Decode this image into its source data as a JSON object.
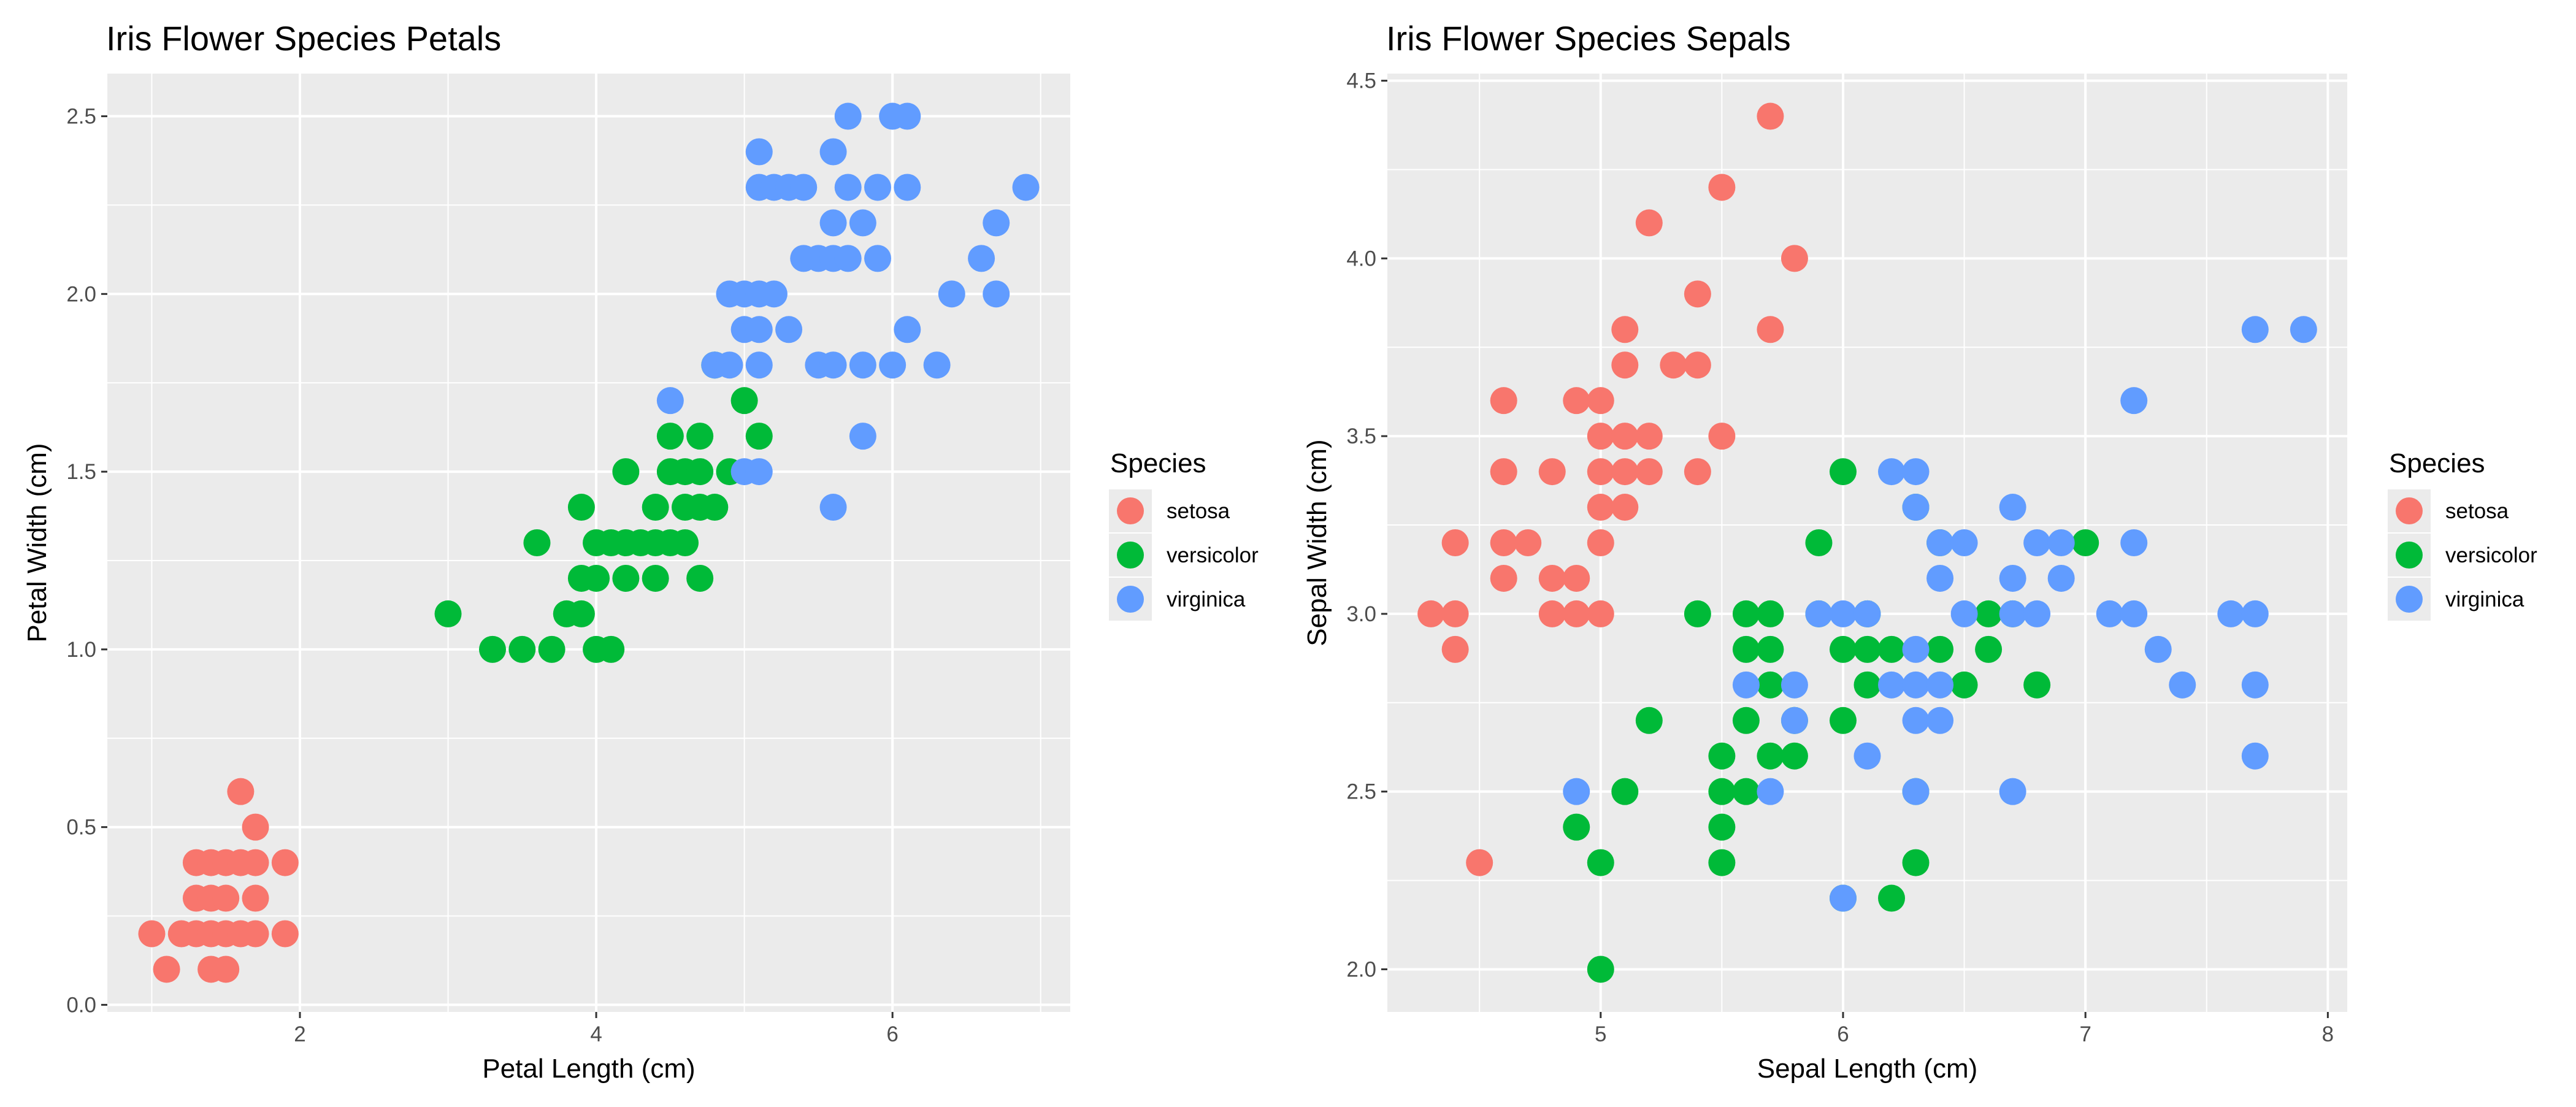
{
  "chart_data": [
    {
      "type": "scatter",
      "title": "Iris Flower Species Petals",
      "xlabel": "Petal Length (cm)",
      "ylabel": "Petal Width (cm)",
      "xlim": [
        0.7,
        7.2
      ],
      "ylim": [
        -0.02,
        2.62
      ],
      "xticks": [
        {
          "v": 2,
          "label": "2"
        },
        {
          "v": 4,
          "label": "4"
        },
        {
          "v": 6,
          "label": "6"
        }
      ],
      "yticks": [
        {
          "v": 0.0,
          "label": "0.0"
        },
        {
          "v": 0.5,
          "label": "0.5"
        },
        {
          "v": 1.0,
          "label": "1.0"
        },
        {
          "v": 1.5,
          "label": "1.5"
        },
        {
          "v": 2.0,
          "label": "2.0"
        },
        {
          "v": 2.5,
          "label": "2.5"
        }
      ],
      "xminor": [
        1,
        3,
        5,
        7
      ],
      "yminor": [
        0.25,
        0.75,
        1.25,
        1.75,
        2.25
      ],
      "grid": true,
      "legend": {
        "title": "Species",
        "placement": "right"
      },
      "series": [
        {
          "name": "setosa",
          "color": "#F8766D",
          "points": [
            [
              1.0,
              0.2
            ],
            [
              1.1,
              0.1
            ],
            [
              1.2,
              0.2
            ],
            [
              1.3,
              0.2
            ],
            [
              1.3,
              0.3
            ],
            [
              1.3,
              0.4
            ],
            [
              1.4,
              0.1
            ],
            [
              1.4,
              0.2
            ],
            [
              1.4,
              0.3
            ],
            [
              1.4,
              0.4
            ],
            [
              1.5,
              0.1
            ],
            [
              1.5,
              0.2
            ],
            [
              1.5,
              0.3
            ],
            [
              1.5,
              0.4
            ],
            [
              1.6,
              0.2
            ],
            [
              1.6,
              0.4
            ],
            [
              1.6,
              0.6
            ],
            [
              1.7,
              0.2
            ],
            [
              1.7,
              0.3
            ],
            [
              1.7,
              0.4
            ],
            [
              1.7,
              0.5
            ],
            [
              1.9,
              0.2
            ],
            [
              1.9,
              0.4
            ]
          ]
        },
        {
          "name": "versicolor",
          "color": "#00BA38",
          "points": [
            [
              3.0,
              1.1
            ],
            [
              3.3,
              1.0
            ],
            [
              3.5,
              1.0
            ],
            [
              3.6,
              1.3
            ],
            [
              3.7,
              1.0
            ],
            [
              3.8,
              1.1
            ],
            [
              3.9,
              1.1
            ],
            [
              3.9,
              1.2
            ],
            [
              3.9,
              1.4
            ],
            [
              4.0,
              1.0
            ],
            [
              4.0,
              1.2
            ],
            [
              4.0,
              1.3
            ],
            [
              4.1,
              1.0
            ],
            [
              4.1,
              1.3
            ],
            [
              4.2,
              1.2
            ],
            [
              4.2,
              1.3
            ],
            [
              4.2,
              1.5
            ],
            [
              4.3,
              1.3
            ],
            [
              4.4,
              1.2
            ],
            [
              4.4,
              1.3
            ],
            [
              4.4,
              1.4
            ],
            [
              4.5,
              1.3
            ],
            [
              4.5,
              1.5
            ],
            [
              4.5,
              1.6
            ],
            [
              4.6,
              1.3
            ],
            [
              4.6,
              1.4
            ],
            [
              4.6,
              1.5
            ],
            [
              4.7,
              1.2
            ],
            [
              4.7,
              1.4
            ],
            [
              4.7,
              1.5
            ],
            [
              4.7,
              1.6
            ],
            [
              4.8,
              1.4
            ],
            [
              4.8,
              1.8
            ],
            [
              4.9,
              1.5
            ],
            [
              5.0,
              1.7
            ],
            [
              5.1,
              1.6
            ]
          ]
        },
        {
          "name": "virginica",
          "color": "#619CFF",
          "points": [
            [
              4.5,
              1.7
            ],
            [
              4.8,
              1.8
            ],
            [
              4.9,
              1.8
            ],
            [
              4.9,
              2.0
            ],
            [
              5.0,
              1.5
            ],
            [
              5.0,
              1.9
            ],
            [
              5.0,
              2.0
            ],
            [
              5.1,
              1.5
            ],
            [
              5.1,
              1.8
            ],
            [
              5.1,
              1.9
            ],
            [
              5.1,
              2.0
            ],
            [
              5.1,
              2.3
            ],
            [
              5.1,
              2.4
            ],
            [
              5.2,
              2.0
            ],
            [
              5.2,
              2.3
            ],
            [
              5.3,
              1.9
            ],
            [
              5.3,
              2.3
            ],
            [
              5.4,
              2.1
            ],
            [
              5.4,
              2.3
            ],
            [
              5.5,
              1.8
            ],
            [
              5.5,
              2.1
            ],
            [
              5.6,
              1.4
            ],
            [
              5.6,
              1.8
            ],
            [
              5.6,
              2.1
            ],
            [
              5.6,
              2.2
            ],
            [
              5.6,
              2.4
            ],
            [
              5.7,
              2.1
            ],
            [
              5.7,
              2.3
            ],
            [
              5.7,
              2.5
            ],
            [
              5.8,
              1.6
            ],
            [
              5.8,
              1.8
            ],
            [
              5.8,
              2.2
            ],
            [
              5.9,
              2.1
            ],
            [
              5.9,
              2.3
            ],
            [
              6.0,
              1.8
            ],
            [
              6.0,
              2.5
            ],
            [
              6.1,
              1.9
            ],
            [
              6.1,
              2.3
            ],
            [
              6.1,
              2.5
            ],
            [
              6.3,
              1.8
            ],
            [
              6.4,
              2.0
            ],
            [
              6.6,
              2.1
            ],
            [
              6.7,
              2.0
            ],
            [
              6.7,
              2.2
            ],
            [
              6.9,
              2.3
            ]
          ]
        }
      ]
    },
    {
      "type": "scatter",
      "title": "Iris Flower Species Sepals",
      "xlabel": "Sepal Length (cm)",
      "ylabel": "Sepal Width (cm)",
      "xlim": [
        4.12,
        8.08
      ],
      "ylim": [
        1.88,
        4.52
      ],
      "xticks": [
        {
          "v": 5,
          "label": "5"
        },
        {
          "v": 6,
          "label": "6"
        },
        {
          "v": 7,
          "label": "7"
        },
        {
          "v": 8,
          "label": "8"
        }
      ],
      "yticks": [
        {
          "v": 2.0,
          "label": "2.0"
        },
        {
          "v": 2.5,
          "label": "2.5"
        },
        {
          "v": 3.0,
          "label": "3.0"
        },
        {
          "v": 3.5,
          "label": "3.5"
        },
        {
          "v": 4.0,
          "label": "4.0"
        },
        {
          "v": 4.5,
          "label": "4.5"
        }
      ],
      "xminor": [
        4.5,
        5.5,
        6.5,
        7.5
      ],
      "yminor": [
        2.25,
        2.75,
        3.25,
        3.75,
        4.25
      ],
      "grid": true,
      "legend": {
        "title": "Species",
        "placement": "right"
      },
      "series": [
        {
          "name": "setosa",
          "color": "#F8766D",
          "points": [
            [
              4.3,
              3.0
            ],
            [
              4.4,
              2.9
            ],
            [
              4.4,
              3.0
            ],
            [
              4.4,
              3.2
            ],
            [
              4.5,
              2.3
            ],
            [
              4.6,
              3.1
            ],
            [
              4.6,
              3.2
            ],
            [
              4.6,
              3.4
            ],
            [
              4.6,
              3.6
            ],
            [
              4.7,
              3.2
            ],
            [
              4.8,
              3.0
            ],
            [
              4.8,
              3.1
            ],
            [
              4.8,
              3.4
            ],
            [
              4.9,
              3.0
            ],
            [
              4.9,
              3.1
            ],
            [
              4.9,
              3.6
            ],
            [
              5.0,
              3.0
            ],
            [
              5.0,
              3.2
            ],
            [
              5.0,
              3.3
            ],
            [
              5.0,
              3.4
            ],
            [
              5.0,
              3.5
            ],
            [
              5.0,
              3.6
            ],
            [
              5.1,
              3.3
            ],
            [
              5.1,
              3.4
            ],
            [
              5.1,
              3.5
            ],
            [
              5.1,
              3.7
            ],
            [
              5.1,
              3.8
            ],
            [
              5.2,
              3.4
            ],
            [
              5.2,
              3.5
            ],
            [
              5.2,
              4.1
            ],
            [
              5.3,
              3.7
            ],
            [
              5.4,
              3.4
            ],
            [
              5.4,
              3.7
            ],
            [
              5.4,
              3.9
            ],
            [
              5.5,
              3.5
            ],
            [
              5.5,
              4.2
            ],
            [
              5.7,
              3.8
            ],
            [
              5.7,
              4.4
            ],
            [
              5.8,
              4.0
            ]
          ]
        },
        {
          "name": "versicolor",
          "color": "#00BA38",
          "points": [
            [
              4.9,
              2.4
            ],
            [
              5.0,
              2.0
            ],
            [
              5.0,
              2.3
            ],
            [
              5.1,
              2.5
            ],
            [
              5.2,
              2.7
            ],
            [
              5.4,
              3.0
            ],
            [
              5.5,
              2.3
            ],
            [
              5.5,
              2.4
            ],
            [
              5.5,
              2.5
            ],
            [
              5.5,
              2.6
            ],
            [
              5.6,
              2.5
            ],
            [
              5.6,
              2.7
            ],
            [
              5.6,
              2.9
            ],
            [
              5.6,
              3.0
            ],
            [
              5.7,
              2.6
            ],
            [
              5.7,
              2.8
            ],
            [
              5.7,
              2.9
            ],
            [
              5.7,
              3.0
            ],
            [
              5.8,
              2.6
            ],
            [
              5.8,
              2.7
            ],
            [
              5.9,
              3.0
            ],
            [
              5.9,
              3.2
            ],
            [
              6.0,
              2.2
            ],
            [
              6.0,
              2.7
            ],
            [
              6.0,
              2.9
            ],
            [
              6.0,
              3.4
            ],
            [
              6.1,
              2.8
            ],
            [
              6.1,
              2.9
            ],
            [
              6.1,
              3.0
            ],
            [
              6.2,
              2.2
            ],
            [
              6.2,
              2.9
            ],
            [
              6.3,
              2.3
            ],
            [
              6.3,
              2.5
            ],
            [
              6.3,
              3.3
            ],
            [
              6.4,
              2.9
            ],
            [
              6.4,
              3.2
            ],
            [
              6.5,
              2.8
            ],
            [
              6.6,
              2.9
            ],
            [
              6.6,
              3.0
            ],
            [
              6.7,
              3.0
            ],
            [
              6.8,
              2.8
            ],
            [
              7.0,
              3.2
            ]
          ]
        },
        {
          "name": "virginica",
          "color": "#619CFF",
          "points": [
            [
              4.9,
              2.5
            ],
            [
              5.6,
              2.8
            ],
            [
              5.7,
              2.5
            ],
            [
              5.8,
              2.7
            ],
            [
              5.8,
              2.8
            ],
            [
              5.9,
              3.0
            ],
            [
              6.0,
              2.2
            ],
            [
              6.0,
              3.0
            ],
            [
              6.1,
              2.6
            ],
            [
              6.1,
              3.0
            ],
            [
              6.2,
              2.8
            ],
            [
              6.2,
              3.4
            ],
            [
              6.3,
              2.5
            ],
            [
              6.3,
              2.7
            ],
            [
              6.3,
              2.8
            ],
            [
              6.3,
              2.9
            ],
            [
              6.3,
              3.3
            ],
            [
              6.3,
              3.4
            ],
            [
              6.4,
              2.7
            ],
            [
              6.4,
              2.8
            ],
            [
              6.4,
              3.1
            ],
            [
              6.4,
              3.2
            ],
            [
              6.5,
              3.0
            ],
            [
              6.5,
              3.2
            ],
            [
              6.7,
              2.5
            ],
            [
              6.7,
              3.0
            ],
            [
              6.7,
              3.1
            ],
            [
              6.7,
              3.3
            ],
            [
              6.8,
              3.0
            ],
            [
              6.8,
              3.2
            ],
            [
              6.9,
              3.1
            ],
            [
              6.9,
              3.2
            ],
            [
              7.1,
              3.0
            ],
            [
              7.2,
              3.0
            ],
            [
              7.2,
              3.2
            ],
            [
              7.2,
              3.6
            ],
            [
              7.3,
              2.9
            ],
            [
              7.4,
              2.8
            ],
            [
              7.6,
              3.0
            ],
            [
              7.7,
              2.6
            ],
            [
              7.7,
              2.8
            ],
            [
              7.7,
              3.0
            ],
            [
              7.7,
              3.8
            ],
            [
              7.9,
              3.8
            ]
          ]
        }
      ]
    }
  ]
}
